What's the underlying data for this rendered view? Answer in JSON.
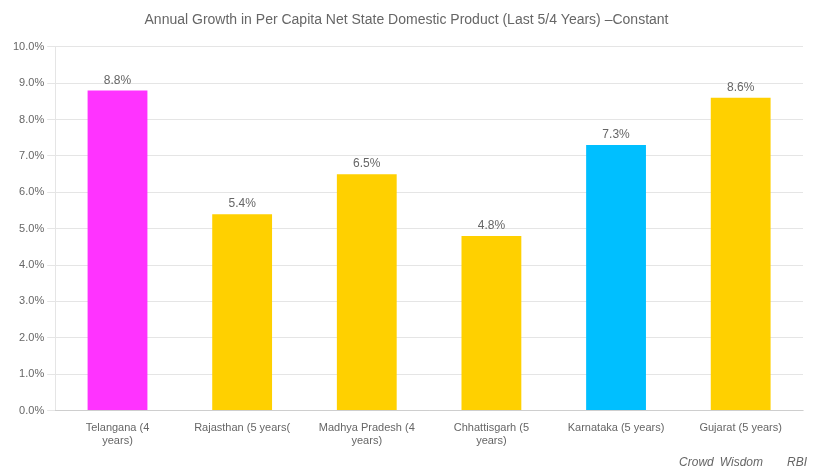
{
  "chart_data": {
    "type": "bar",
    "title": "Annual Growth in Per Capita Net State Domestic Product (Last 5/4 Years) –Constant",
    "categories": [
      "Telangana (4\nyears)",
      "Rajasthan (5 years(",
      "Madhya Pradesh (4\nyears)",
      "Chhattisgarh (5\nyears)",
      "Karnataka (5 years)",
      "Gujarat (5 years)"
    ],
    "values": [
      8.8,
      5.4,
      6.5,
      4.8,
      7.3,
      8.6
    ],
    "value_labels": [
      "8.8%",
      "5.4%",
      "6.5%",
      "4.8%",
      "7.3%",
      "8.6%"
    ],
    "colors": [
      "#FF33FF",
      "#FFD000",
      "#FFD000",
      "#FFD000",
      "#00BFFF",
      "#FFD000"
    ],
    "ylim": [
      0,
      10.0
    ],
    "yticks": [
      {
        "value": 0.0,
        "label": "0.0%"
      },
      {
        "value": 1.0,
        "label": "1.0%"
      },
      {
        "value": 2.0,
        "label": "2.0%"
      },
      {
        "value": 3.0,
        "label": "3.0%"
      },
      {
        "value": 4.0,
        "label": "4.0%"
      },
      {
        "value": 5.0,
        "label": "5.0%"
      },
      {
        "value": 6.0,
        "label": "6.0%"
      },
      {
        "value": 7.0,
        "label": "7.0%"
      },
      {
        "value": 8.0,
        "label": "8.0%"
      },
      {
        "value": 9.0,
        "label": "9.0%"
      },
      {
        "value": 10.0,
        "label": "10.0%"
      }
    ],
    "grid": true,
    "data_labels": true,
    "annotations": [
      "Crowd",
      "Wisdom",
      "RBI"
    ]
  }
}
